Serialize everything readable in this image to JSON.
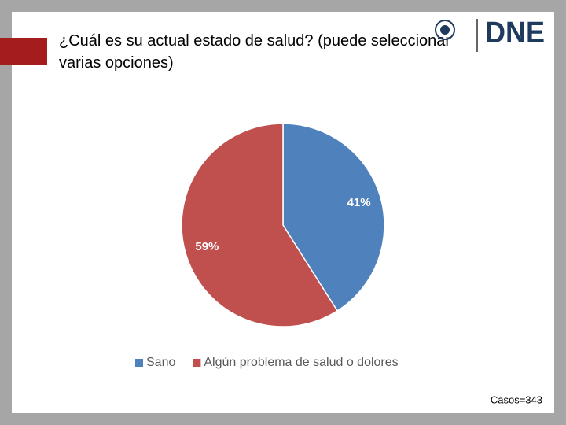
{
  "chart_data": {
    "type": "pie",
    "title": "¿Cuál es su actual estado de salud? (puede seleccionar varias opciones)",
    "logo": "DNE",
    "categories": [
      "Sano",
      "Algún problema de salud o dolores"
    ],
    "values": [
      41,
      59
    ],
    "value_labels": [
      "41%",
      "59%"
    ],
    "colors": [
      "#4f81bd",
      "#c0504d"
    ],
    "legend": "bottom",
    "note": "Casos=343"
  }
}
